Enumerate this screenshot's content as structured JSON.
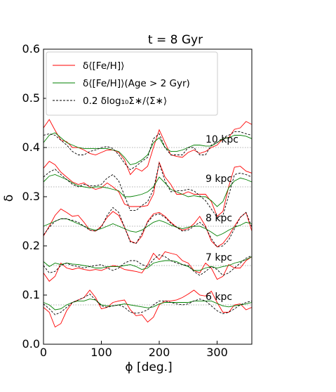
{
  "chart_data": {
    "type": "line",
    "title": "t = 8 Gyr",
    "xlabel": "ϕ [deg.]",
    "ylabel": "δ",
    "xlim": [
      0,
      360
    ],
    "ylim": [
      0.0,
      0.6
    ],
    "xticks": [
      0,
      100,
      200,
      300
    ],
    "yticks": [
      0.0,
      0.1,
      0.2,
      0.3,
      0.4,
      0.5,
      0.6
    ],
    "xtick_labels": [
      "0",
      "100",
      "200",
      "300"
    ],
    "ytick_labels": [
      "0.0",
      "0.1",
      "0.2",
      "0.3",
      "0.4",
      "0.5",
      "0.6"
    ],
    "legend_position": "upper left",
    "grid": false,
    "phi": [
      0,
      10,
      20,
      30,
      40,
      50,
      60,
      70,
      80,
      90,
      100,
      110,
      120,
      130,
      140,
      150,
      160,
      170,
      180,
      190,
      200,
      210,
      220,
      230,
      240,
      250,
      260,
      270,
      280,
      290,
      300,
      310,
      320,
      330,
      340,
      350,
      360
    ],
    "series_styles": [
      {
        "name": "δ⟨[Fe/H]⟩",
        "color": "#ff0000",
        "dash": "solid"
      },
      {
        "name": "δ⟨[Fe/H]⟩(Age > 2 Gyr)",
        "color": "#008000",
        "dash": "solid"
      },
      {
        "name": "0.2 δlog₁₀Σ∗/⟨Σ∗⟩",
        "color": "#000000",
        "dash": "dashed"
      }
    ],
    "rings": [
      {
        "label": "10 kpc",
        "baseline": 0.4,
        "series": [
          {
            "name": "δ⟨[Fe/H]⟩",
            "values": [
              0.44,
              0.457,
              0.435,
              0.415,
              0.412,
              0.4,
              0.4,
              0.395,
              0.388,
              0.385,
              0.39,
              0.395,
              0.395,
              0.39,
              0.375,
              0.345,
              0.358,
              0.352,
              0.362,
              0.4,
              0.436,
              0.41,
              0.385,
              0.382,
              0.38,
              0.39,
              0.395,
              0.388,
              0.392,
              0.4,
              0.405,
              0.418,
              0.42,
              0.437,
              0.44,
              0.453,
              0.447
            ]
          },
          {
            "name": "δ⟨[Fe/H]⟩(Age > 2 Gyr)",
            "values": [
              0.41,
              0.425,
              0.43,
              0.42,
              0.41,
              0.405,
              0.4,
              0.398,
              0.398,
              0.398,
              0.398,
              0.398,
              0.395,
              0.392,
              0.38,
              0.365,
              0.368,
              0.375,
              0.385,
              0.41,
              0.42,
              0.4,
              0.392,
              0.392,
              0.395,
              0.4,
              0.405,
              0.405,
              0.403,
              0.403,
              0.41,
              0.418,
              0.42,
              0.425,
              0.425,
              0.423,
              0.418
            ]
          },
          {
            "name": "0.2 δlog₁₀Σ∗/⟨Σ∗⟩",
            "values": [
              0.425,
              0.428,
              0.425,
              0.415,
              0.405,
              0.392,
              0.385,
              0.385,
              0.392,
              0.395,
              0.4,
              0.402,
              0.398,
              0.385,
              0.368,
              0.355,
              0.362,
              0.372,
              0.38,
              0.418,
              0.428,
              0.4,
              0.385,
              0.385,
              0.385,
              0.4,
              0.4,
              0.385,
              0.385,
              0.405,
              0.41,
              0.42,
              0.425,
              0.432,
              0.432,
              0.428,
              0.425
            ]
          }
        ]
      },
      {
        "label": "9 kpc",
        "baseline": 0.32,
        "series": [
          {
            "name": "δ⟨[Fe/H]⟩",
            "values": [
              0.358,
              0.372,
              0.365,
              0.35,
              0.34,
              0.33,
              0.325,
              0.328,
              0.32,
              0.315,
              0.318,
              0.328,
              0.32,
              0.31,
              0.285,
              0.28,
              0.28,
              0.28,
              0.282,
              0.305,
              0.37,
              0.34,
              0.325,
              0.305,
              0.305,
              0.31,
              0.305,
              0.305,
              0.305,
              0.29,
              0.26,
              0.27,
              0.32,
              0.36,
              0.362,
              0.352,
              0.348
            ]
          },
          {
            "name": "δ⟨[Fe/H]⟩(Age > 2 Gyr)",
            "values": [
              0.33,
              0.342,
              0.345,
              0.34,
              0.335,
              0.328,
              0.322,
              0.32,
              0.318,
              0.32,
              0.32,
              0.318,
              0.315,
              0.312,
              0.3,
              0.3,
              0.302,
              0.305,
              0.31,
              0.32,
              0.34,
              0.328,
              0.315,
              0.31,
              0.305,
              0.3,
              0.302,
              0.3,
              0.3,
              0.292,
              0.28,
              0.29,
              0.318,
              0.332,
              0.338,
              0.335,
              0.33
            ]
          },
          {
            "name": "0.2 δlog₁₀Σ∗/⟨Σ∗⟩",
            "values": [
              0.34,
              0.35,
              0.356,
              0.345,
              0.335,
              0.325,
              0.32,
              0.325,
              0.322,
              0.322,
              0.325,
              0.338,
              0.345,
              0.332,
              0.302,
              0.272,
              0.272,
              0.282,
              0.29,
              0.315,
              0.368,
              0.332,
              0.31,
              0.312,
              0.312,
              0.315,
              0.312,
              0.302,
              0.292,
              0.275,
              0.258,
              0.262,
              0.302,
              0.345,
              0.348,
              0.345,
              0.34
            ]
          }
        ]
      },
      {
        "label": "8 kpc",
        "baseline": 0.24,
        "series": [
          {
            "name": "δ⟨[Fe/H]⟩",
            "values": [
              0.22,
              0.24,
              0.262,
              0.275,
              0.268,
              0.26,
              0.262,
              0.248,
              0.232,
              0.23,
              0.24,
              0.258,
              0.27,
              0.262,
              0.238,
              0.21,
              0.205,
              0.22,
              0.25,
              0.265,
              0.268,
              0.26,
              0.248,
              0.238,
              0.232,
              0.235,
              0.245,
              0.26,
              0.24,
              0.21,
              0.198,
              0.205,
              0.22,
              0.24,
              0.258,
              0.268,
              0.23
            ]
          },
          {
            "name": "δ⟨[Fe/H]⟩(Age > 2 Gyr)",
            "values": [
              0.24,
              0.245,
              0.25,
              0.255,
              0.255,
              0.25,
              0.245,
              0.24,
              0.235,
              0.232,
              0.235,
              0.24,
              0.245,
              0.24,
              0.235,
              0.23,
              0.228,
              0.232,
              0.24,
              0.248,
              0.252,
              0.248,
              0.242,
              0.238,
              0.235,
              0.238,
              0.24,
              0.24,
              0.235,
              0.228,
              0.22,
              0.225,
              0.232,
              0.238,
              0.242,
              0.248,
              0.245
            ]
          },
          {
            "name": "0.2 δlog₁₀Σ∗/⟨Σ∗⟩",
            "values": [
              0.222,
              0.238,
              0.25,
              0.255,
              0.255,
              0.252,
              0.248,
              0.24,
              0.232,
              0.23,
              0.238,
              0.262,
              0.278,
              0.268,
              0.238,
              0.208,
              0.205,
              0.225,
              0.248,
              0.262,
              0.265,
              0.258,
              0.246,
              0.238,
              0.23,
              0.232,
              0.24,
              0.248,
              0.238,
              0.215,
              0.198,
              0.2,
              0.212,
              0.235,
              0.258,
              0.268,
              0.238
            ]
          }
        ]
      },
      {
        "label": "7 kpc",
        "baseline": 0.16,
        "series": [
          {
            "name": "δ⟨[Fe/H]⟩",
            "values": [
              0.145,
              0.128,
              0.138,
              0.165,
              0.155,
              0.152,
              0.155,
              0.152,
              0.15,
              0.152,
              0.15,
              0.155,
              0.16,
              0.158,
              0.152,
              0.15,
              0.148,
              0.145,
              0.162,
              0.185,
              0.172,
              0.188,
              0.185,
              0.182,
              0.17,
              0.165,
              0.15,
              0.145,
              0.165,
              0.155,
              0.132,
              0.138,
              0.162,
              0.155,
              0.155,
              0.17,
              0.178
            ]
          },
          {
            "name": "δ⟨[Fe/H]⟩(Age > 2 Gyr)",
            "values": [
              0.168,
              0.158,
              0.165,
              0.162,
              0.165,
              0.163,
              0.162,
              0.16,
              0.158,
              0.155,
              0.155,
              0.158,
              0.158,
              0.158,
              0.16,
              0.162,
              0.158,
              0.152,
              0.155,
              0.165,
              0.168,
              0.17,
              0.17,
              0.168,
              0.162,
              0.158,
              0.15,
              0.15,
              0.155,
              0.158,
              0.155,
              0.158,
              0.16,
              0.165,
              0.168,
              0.172,
              0.178
            ]
          },
          {
            "name": "0.2 δlog₁₀Σ∗/⟨Σ∗⟩",
            "values": [
              0.16,
              0.145,
              0.148,
              0.16,
              0.165,
              0.16,
              0.158,
              0.155,
              0.158,
              0.16,
              0.162,
              0.155,
              0.15,
              0.155,
              0.165,
              0.17,
              0.17,
              0.162,
              0.158,
              0.172,
              0.182,
              0.178,
              0.17,
              0.165,
              0.162,
              0.16,
              0.148,
              0.14,
              0.148,
              0.158,
              0.152,
              0.14,
              0.145,
              0.155,
              0.165,
              0.175,
              0.18
            ]
          }
        ]
      },
      {
        "label": "6 kpc",
        "baseline": 0.08,
        "series": [
          {
            "name": "δ⟨[Fe/H]⟩",
            "values": [
              0.075,
              0.065,
              0.035,
              0.042,
              0.068,
              0.085,
              0.09,
              0.095,
              0.11,
              0.095,
              0.072,
              0.075,
              0.085,
              0.088,
              0.09,
              0.07,
              0.058,
              0.06,
              0.045,
              0.055,
              0.08,
              0.088,
              0.088,
              0.09,
              0.095,
              0.102,
              0.11,
              0.1,
              0.098,
              0.108,
              0.085,
              0.065,
              0.065,
              0.08,
              0.082,
              0.07,
              0.075
            ]
          },
          {
            "name": "δ⟨[Fe/H]⟩(Age > 2 Gyr)",
            "values": [
              0.085,
              0.08,
              0.07,
              0.072,
              0.08,
              0.085,
              0.088,
              0.088,
              0.092,
              0.09,
              0.08,
              0.078,
              0.078,
              0.08,
              0.082,
              0.08,
              0.078,
              0.076,
              0.074,
              0.076,
              0.082,
              0.085,
              0.085,
              0.085,
              0.085,
              0.085,
              0.088,
              0.088,
              0.088,
              0.088,
              0.083,
              0.078,
              0.076,
              0.078,
              0.08,
              0.082,
              0.085
            ]
          },
          {
            "name": "0.2 δlog₁₀Σ∗/⟨Σ∗⟩",
            "values": [
              0.082,
              0.072,
              0.06,
              0.065,
              0.075,
              0.085,
              0.09,
              0.095,
              0.102,
              0.09,
              0.078,
              0.075,
              0.078,
              0.08,
              0.075,
              0.065,
              0.063,
              0.065,
              0.07,
              0.08,
              0.088,
              0.088,
              0.085,
              0.082,
              0.08,
              0.082,
              0.088,
              0.092,
              0.088,
              0.078,
              0.068,
              0.062,
              0.065,
              0.072,
              0.08,
              0.085,
              0.088
            ]
          }
        ]
      }
    ]
  }
}
